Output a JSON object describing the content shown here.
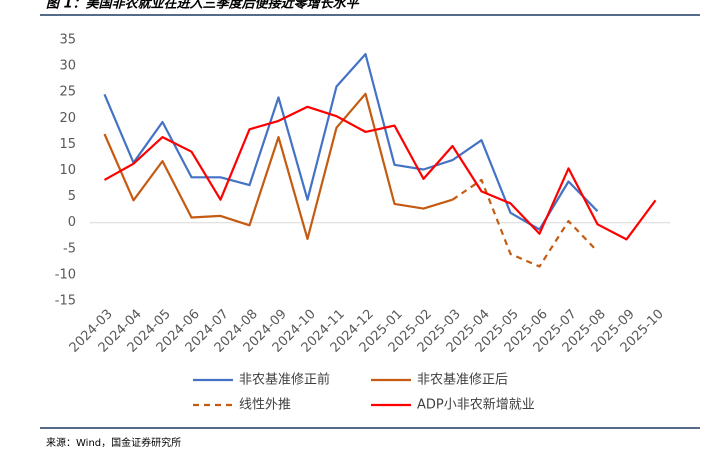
{
  "chart_data": {
    "type": "line",
    "title": "图 1：美国非农就业在进入三季度后便接近零增长水平",
    "source": "来源：Wind，国金证券研究所",
    "categories": [
      "2024-03",
      "2024-04",
      "2024-05",
      "2024-06",
      "2024-07",
      "2024-08",
      "2024-09",
      "2024-10",
      "2024-11",
      "2024-12",
      "2025-01",
      "2025-02",
      "2025-03",
      "2025-04",
      "2025-05",
      "2025-06",
      "2025-07",
      "2025-08",
      "2025-09",
      "2025-10"
    ],
    "series": [
      {
        "name": "非农基准修正前",
        "color": "#4472c4",
        "dashed": false,
        "values": [
          24.6,
          11.5,
          19.3,
          8.7,
          8.7,
          7.2,
          24.0,
          4.4,
          26.1,
          32.3,
          11.1,
          10.2,
          12.0,
          15.8,
          1.9,
          -1.3,
          7.9,
          2.2,
          null,
          null
        ]
      },
      {
        "name": "非农基准修正后",
        "color": "#c55a11",
        "dashed": false,
        "values": [
          17.0,
          4.3,
          11.8,
          1.0,
          1.3,
          -0.5,
          16.4,
          -3.1,
          18.2,
          24.7,
          3.6,
          2.7,
          4.4,
          null,
          null,
          null,
          null,
          null,
          null,
          null
        ]
      },
      {
        "name": "线性外推",
        "color": "#c55a11",
        "dashed": true,
        "values": [
          null,
          null,
          null,
          null,
          null,
          null,
          null,
          null,
          null,
          null,
          null,
          null,
          4.4,
          8.2,
          -6.0,
          -8.4,
          0.3,
          -5.5,
          null,
          null
        ]
      },
      {
        "name": "ADP小非农新增就业",
        "color": "#ff0000",
        "dashed": false,
        "values": [
          8.2,
          11.3,
          16.4,
          13.6,
          4.4,
          17.9,
          19.5,
          22.2,
          20.4,
          17.4,
          18.6,
          8.4,
          14.7,
          6.0,
          3.7,
          -2.1,
          10.4,
          -0.3,
          -3.2,
          4.3
        ]
      }
    ],
    "ylim": [
      -15,
      35
    ],
    "yticks": [
      -15,
      -10,
      -5,
      0,
      5,
      10,
      15,
      20,
      25,
      30,
      35
    ],
    "grid": false
  }
}
